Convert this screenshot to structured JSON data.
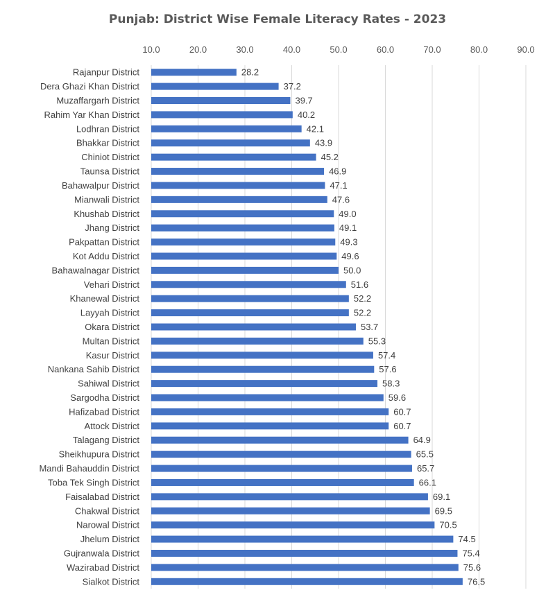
{
  "chart_data": {
    "type": "bar",
    "orientation": "horizontal",
    "title": "Punjab: District Wise Female Literacy Rates - 2023",
    "xlabel": "",
    "ylabel": "",
    "xlim": [
      10,
      90
    ],
    "x_ticks": [
      "10.0",
      "20.0",
      "30.0",
      "40.0",
      "50.0",
      "60.0",
      "70.0",
      "80.0",
      "90.0"
    ],
    "axis_position": "top",
    "grid": true,
    "legend": "none",
    "bar_color": "#4472C4",
    "categories": [
      "Rajanpur District",
      "Dera Ghazi Khan District",
      "Muzaffargarh District",
      "Rahim Yar Khan District",
      "Lodhran District",
      "Bhakkar District",
      "Chiniot District",
      "Taunsa District",
      "Bahawalpur District",
      "Mianwali District",
      "Khushab District",
      "Jhang District",
      "Pakpattan District",
      "Kot Addu District",
      "Bahawalnagar District",
      "Vehari District",
      "Khanewal District",
      "Layyah District",
      "Okara District",
      "Multan District",
      "Kasur District",
      "Nankana Sahib District",
      "Sahiwal District",
      "Sargodha District",
      "Hafizabad District",
      "Attock District",
      "Talagang District",
      "Sheikhupura District",
      "Mandi Bahauddin District",
      "Toba Tek Singh District",
      "Faisalabad District",
      "Chakwal District",
      "Narowal District",
      "Jhelum District",
      "Gujranwala District",
      "Wazirabad District",
      "Sialkot District"
    ],
    "values": [
      28.2,
      37.2,
      39.7,
      40.2,
      42.1,
      43.9,
      45.2,
      46.9,
      47.1,
      47.6,
      49.0,
      49.1,
      49.3,
      49.6,
      50.0,
      51.6,
      52.2,
      52.2,
      53.7,
      55.3,
      57.4,
      57.6,
      58.3,
      59.6,
      60.7,
      60.7,
      64.9,
      65.5,
      65.7,
      66.1,
      69.1,
      69.5,
      70.5,
      74.5,
      75.4,
      75.6,
      76.5
    ],
    "data_labels": [
      "28.2",
      "37.2",
      "39.7",
      "40.2",
      "42.1",
      "43.9",
      "45.2",
      "46.9",
      "47.1",
      "47.6",
      "49.0",
      "49.1",
      "49.3",
      "49.6",
      "50.0",
      "51.6",
      "52.2",
      "52.2",
      "53.7",
      "55.3",
      "57.4",
      "57.6",
      "58.3",
      "59.6",
      "60.7",
      "60.7",
      "64.9",
      "65.5",
      "65.7",
      "66.1",
      "69.1",
      "69.5",
      "70.5",
      "74.5",
      "75.4",
      "75.6",
      "76.5"
    ]
  }
}
